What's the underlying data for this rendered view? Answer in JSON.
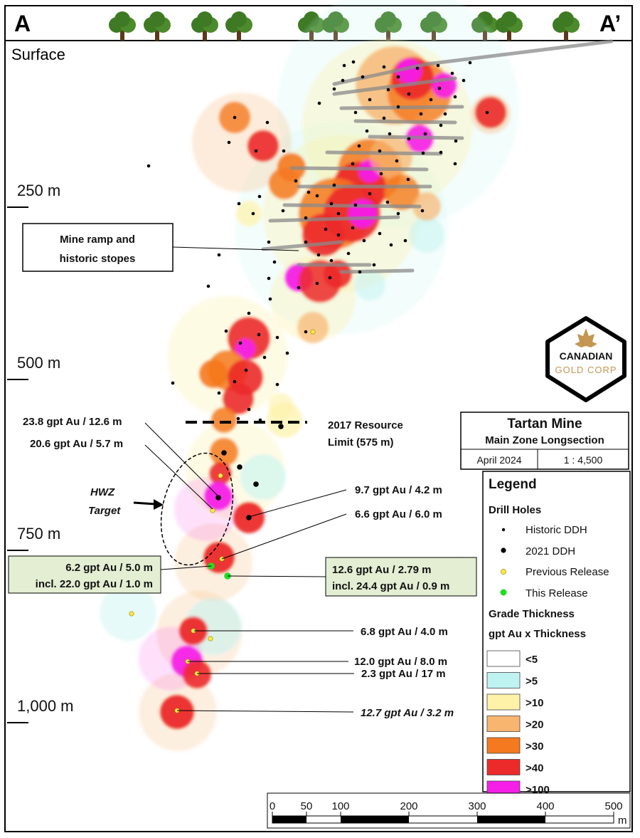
{
  "section": {
    "left_label": "A",
    "right_label": "A’",
    "surface_label": "Surface"
  },
  "depth_marks": [
    "250 m",
    "500 m",
    "750 m",
    "1,000 m"
  ],
  "callouts": {
    "ramp": [
      "Mine ramp and",
      "historic stopes"
    ],
    "resource": [
      "2017 Resource",
      "Limit (575 m)"
    ],
    "hwz": [
      "HWZ",
      "Target"
    ],
    "i1": "23.8 gpt Au / 12.6 m",
    "i2": "20.6 gpt Au / 5.7 m",
    "i3": "9.7 gpt Au / 4.2 m",
    "i4": "6.6 gpt Au / 6.0 m",
    "box_left": [
      "6.2 gpt Au / 5.0 m",
      "incl. 22.0 gpt Au / 1.0 m"
    ],
    "box_right": [
      "12.6 gpt Au / 2.79 m",
      "incl. 24.4 gpt Au / 0.9 m"
    ],
    "i5": "6.8 gpt Au / 4.0 m",
    "i6": "12.0 gpt Au / 8.0 m",
    "i7": "2.3 gpt Au / 17 m",
    "i8": "12.7 gpt Au / 3.2 m"
  },
  "logo": {
    "line1": "CANADIAN",
    "line2": "GOLD CORP"
  },
  "title_block": {
    "title": "Tartan Mine",
    "subtitle": "Main Zone Longsection",
    "date": "April 2024",
    "scale": "1 : 4,500"
  },
  "legend": {
    "title": "Legend",
    "drill_header": "Drill Holes",
    "drill_items": [
      "Historic DDH",
      "2021 DDH",
      "Previous Release",
      "This Release"
    ],
    "grade_header": "Grade Thickness",
    "grade_sub": "gpt Au x Thickness",
    "grade_classes": [
      {
        "label": "<5",
        "color": "#ffffff"
      },
      {
        "label": ">5",
        "color": "#bff3f1"
      },
      {
        "label": ">10",
        "color": "#fdf2a8"
      },
      {
        "label": ">20",
        "color": "#f8b570"
      },
      {
        "label": ">30",
        "color": "#f5791f"
      },
      {
        "label": ">40",
        "color": "#ec2a2a"
      },
      {
        "label": ">100",
        "color": "#f61fe7"
      }
    ]
  },
  "scale_bar": {
    "ticks": [
      "0",
      "50",
      "100",
      "200",
      "300",
      "400",
      "500"
    ],
    "unit": "m"
  }
}
